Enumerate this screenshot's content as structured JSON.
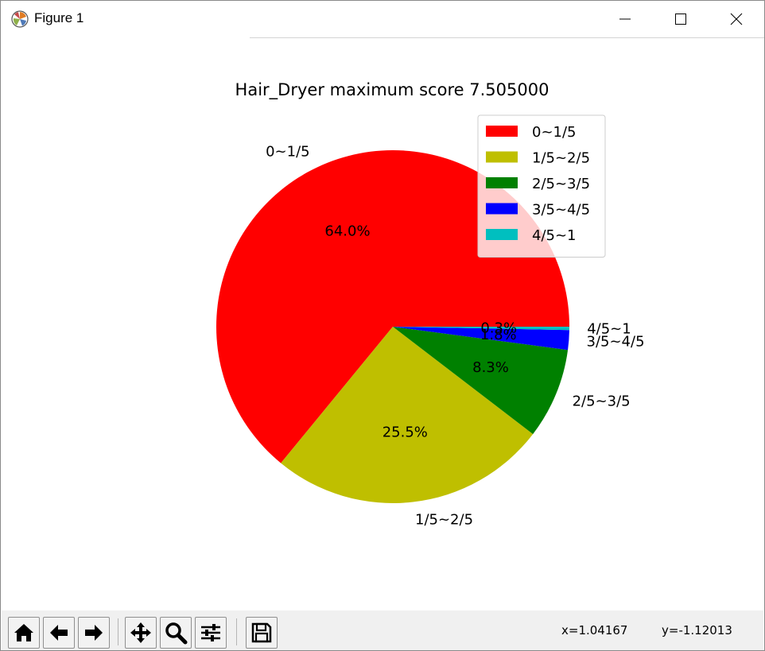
{
  "window": {
    "title": "Figure 1",
    "icons": [
      "matplotlib-logo-icon",
      "minimize-icon",
      "maximize-icon",
      "close-icon"
    ]
  },
  "chart_data": {
    "type": "pie",
    "title": "Hair_Dryer maximum score 7.505000",
    "categories": [
      "0~1/5",
      "1/5~2/5",
      "2/5~3/5",
      "3/5~4/5",
      "4/5~1"
    ],
    "values": [
      64.0,
      25.5,
      8.3,
      1.8,
      0.3
    ],
    "value_labels": [
      "64.0%",
      "25.5%",
      "8.3%",
      "1.8%",
      "0.3%"
    ],
    "colors": [
      "#ff0000",
      "#bfbf00",
      "#008000",
      "#0000ff",
      "#00bfbf"
    ],
    "start_angle_deg": 0,
    "direction": "counterclockwise",
    "legend": {
      "placement": "upper-right",
      "entries": [
        "0~1/5",
        "1/5~2/5",
        "2/5~3/5",
        "3/5~4/5",
        "4/5~1"
      ]
    }
  },
  "toolbar": {
    "buttons": [
      "home-icon",
      "back-arrow-icon",
      "forward-arrow-icon",
      "pan-icon",
      "zoom-icon",
      "configure-subplots-icon",
      "save-icon"
    ],
    "x_readout": "x=1.04167",
    "y_readout": "y=-1.12013"
  }
}
